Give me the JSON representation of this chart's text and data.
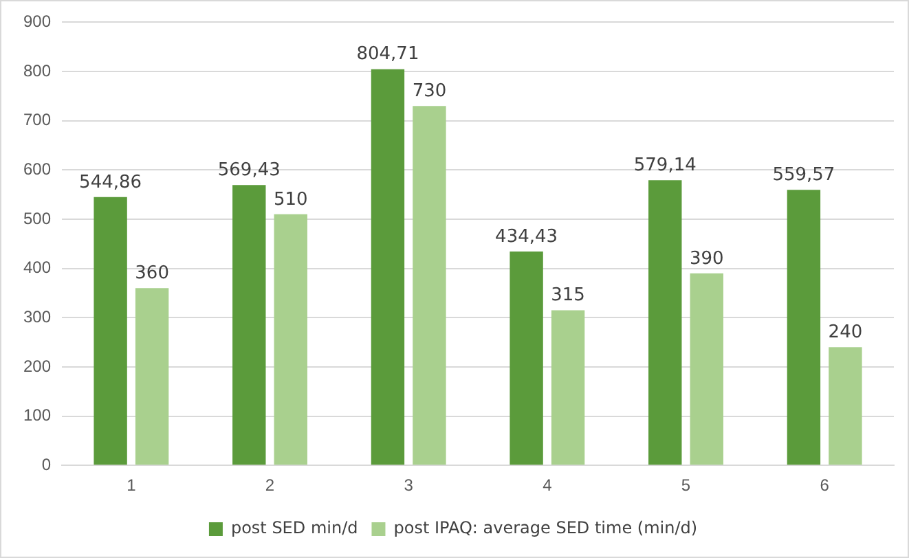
{
  "chart_data": {
    "type": "bar",
    "categories": [
      "1",
      "2",
      "3",
      "4",
      "5",
      "6"
    ],
    "series": [
      {
        "name": "post SED min/d",
        "color": "#5b9b3b",
        "values": [
          544.86,
          569.43,
          804.71,
          434.43,
          579.14,
          559.57
        ],
        "value_labels": [
          "544,86",
          "569,43",
          "804,71",
          "434,43",
          "579,14",
          "559,57"
        ]
      },
      {
        "name": "post IPAQ: average SED time (min/d)",
        "color": "#a9d08e",
        "values": [
          360,
          510,
          730,
          315,
          390,
          240
        ],
        "value_labels": [
          "360",
          "510",
          "730",
          "315",
          "390",
          "240"
        ]
      }
    ],
    "ylim": [
      0,
      900
    ],
    "yticks": [
      0,
      100,
      200,
      300,
      400,
      500,
      600,
      700,
      800,
      900
    ],
    "grid": "y",
    "legend": "bottom"
  }
}
